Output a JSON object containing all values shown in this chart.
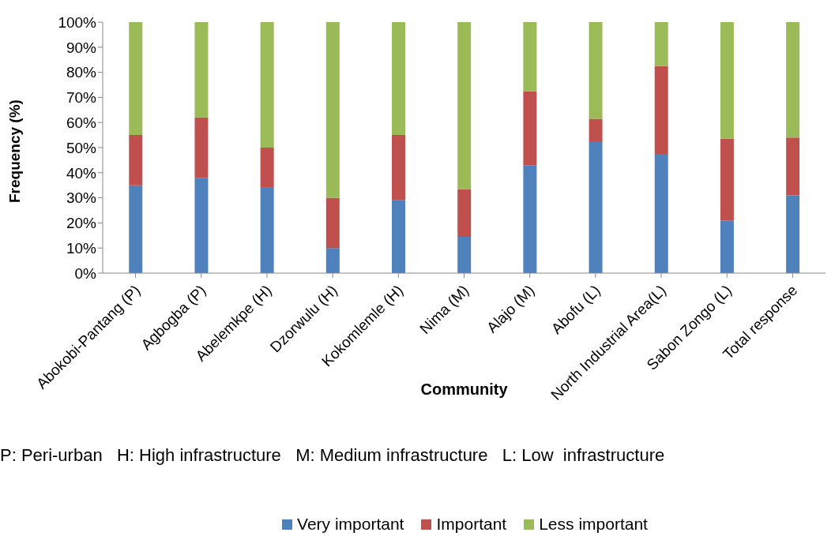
{
  "chart_data": {
    "type": "bar",
    "stacked": true,
    "xlabel": "Community",
    "ylabel": "Frequency (%)",
    "categories": [
      "Abokobi-Pantang (P)",
      "Agbogba (P)",
      "Abelemkpe (H)",
      "Dzorwulu (H)",
      "Kokomlemle (H)",
      "Nima (M)",
      "Alajo (M)",
      "Abofu (L)",
      "North Industrial Area(L)",
      "Sabon Zongo (L)",
      "Total response"
    ],
    "series": [
      {
        "name": "Very important",
        "color": "#4f81bd",
        "values": [
          35,
          38,
          34,
          10,
          29,
          14.5,
          43,
          52.5,
          47.5,
          21,
          31
        ]
      },
      {
        "name": "Important",
        "color": "#c0504d",
        "values": [
          20,
          24,
          16,
          20,
          26,
          19,
          29.5,
          9,
          35,
          32.5,
          23
        ]
      },
      {
        "name": "Less important",
        "color": "#9bbb59",
        "values": [
          45,
          38,
          50,
          70,
          45,
          66.5,
          27.5,
          38.5,
          17.5,
          46.5,
          46
        ]
      }
    ],
    "ylim": [
      0,
      100
    ],
    "yticks": [
      {
        "value": 0,
        "label": "0%"
      },
      {
        "value": 10,
        "label": "10%"
      },
      {
        "value": 20,
        "label": "20%"
      },
      {
        "value": 30,
        "label": "30%"
      },
      {
        "value": 40,
        "label": "40%"
      },
      {
        "value": 50,
        "label": "50%"
      },
      {
        "value": 60,
        "label": "60%"
      },
      {
        "value": 70,
        "label": "70%"
      },
      {
        "value": 80,
        "label": "80%"
      },
      {
        "value": 90,
        "label": "90%"
      },
      {
        "value": 100,
        "label": "100%"
      }
    ],
    "annotations": [
      "P: Peri-urban   H: High infrastructure   M: Medium infrastructure   L: Low  infrastructure"
    ],
    "legend": "bottom",
    "grid": false
  }
}
